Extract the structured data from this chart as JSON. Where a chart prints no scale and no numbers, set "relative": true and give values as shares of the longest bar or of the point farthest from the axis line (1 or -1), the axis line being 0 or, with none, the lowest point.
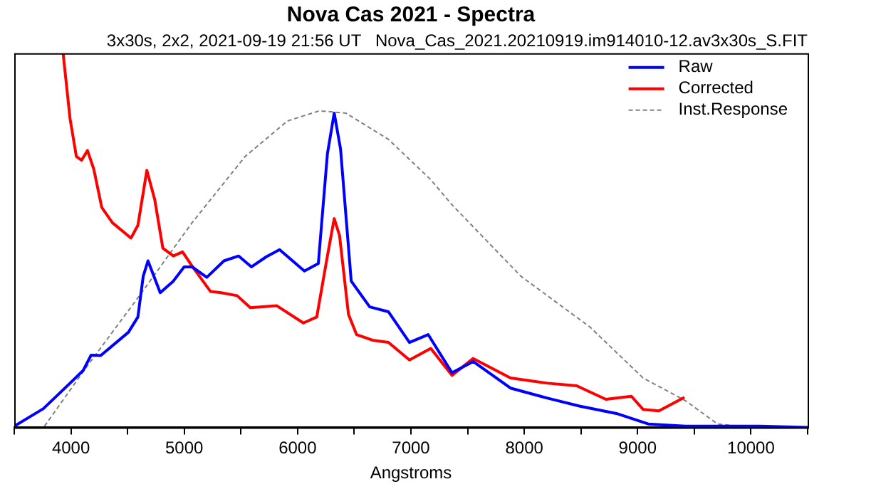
{
  "chart_data": {
    "type": "line",
    "title": "Nova Cas 2021 - Spectra",
    "subtitle": "3x30s, 2x2, 2021-09-19 21:56 UT   Nova_Cas_2021.20210919.im914010-12.av3x30s_S.FIT",
    "xlabel": "Angstroms",
    "relative": true,
    "grid": false,
    "legend": "top right",
    "marker": "none",
    "xlim": [
      3500,
      10500
    ],
    "xticks": [
      {
        "value": 3500,
        "label": null
      },
      4000,
      {
        "value": 4500,
        "label": null
      },
      5000,
      {
        "value": 5500,
        "label": null
      },
      6000,
      {
        "value": 6500,
        "label": null
      },
      7000,
      {
        "value": 7500,
        "label": null
      },
      8000,
      {
        "value": 8500,
        "label": null
      },
      9000,
      {
        "value": 9500,
        "label": null
      },
      10000,
      {
        "value": 10500,
        "label": null
      }
    ],
    "series": [
      {
        "name": "Raw",
        "color": "#0000ff",
        "line_style": "solid",
        "x": [
          3500,
          3757,
          3992,
          4108,
          4178,
          4263,
          4507,
          4591,
          4638,
          4680,
          4788,
          4904,
          4999,
          5069,
          5199,
          5350,
          5480,
          5593,
          5724,
          5841,
          6060,
          6183,
          6263,
          6323,
          6379,
          6473,
          6636,
          6801,
          6987,
          7152,
          7362,
          7549,
          7878,
          8205,
          8486,
          8813,
          9094,
          9423,
          10077,
          10500
        ],
        "values": [
          0.003,
          0.05,
          0.118,
          0.152,
          0.193,
          0.192,
          0.254,
          0.295,
          0.404,
          0.445,
          0.36,
          0.391,
          0.429,
          0.429,
          0.401,
          0.445,
          0.458,
          0.429,
          0.456,
          0.475,
          0.418,
          0.438,
          0.731,
          0.84,
          0.744,
          0.391,
          0.322,
          0.309,
          0.227,
          0.248,
          0.146,
          0.176,
          0.105,
          0.078,
          0.057,
          0.037,
          0.009,
          0.003,
          0.003,
          0
        ]
      },
      {
        "name": "Corrected",
        "color": "#ff0000",
        "line_style": "solid",
        "x": [
          3931,
          3992,
          4048,
          4094,
          4146,
          4202,
          4272,
          4366,
          4530,
          4591,
          4670,
          4740,
          4811,
          4904,
          4985,
          5069,
          5232,
          5326,
          5466,
          5583,
          5817,
          6051,
          6169,
          6263,
          6323,
          6370,
          6449,
          6520,
          6660,
          6801,
          6987,
          7175,
          7362,
          7549,
          7878,
          8205,
          8462,
          8720,
          8945,
          9048,
          9188,
          9413
        ],
        "values": [
          1,
          0.826,
          0.724,
          0.714,
          0.74,
          0.69,
          0.588,
          0.547,
          0.506,
          0.54,
          0.687,
          0.608,
          0.479,
          0.458,
          0.469,
          0.431,
          0.363,
          0.36,
          0.352,
          0.32,
          0.325,
          0.279,
          0.295,
          0.458,
          0.558,
          0.513,
          0.302,
          0.248,
          0.233,
          0.227,
          0.18,
          0.211,
          0.139,
          0.184,
          0.132,
          0.118,
          0.111,
          0.075,
          0.083,
          0.048,
          0.044,
          0.08
        ]
      },
      {
        "name": "Inst.Response",
        "color": "#808080",
        "line_style": "dashed",
        "x": [
          3767,
          4132,
          4600,
          5069,
          5537,
          5911,
          6192,
          6426,
          6801,
          7175,
          7362,
          7970,
          8580,
          9048,
          9423,
          9705,
          9986
        ],
        "values": [
          0.003,
          0.159,
          0.35,
          0.547,
          0.724,
          0.819,
          0.846,
          0.84,
          0.77,
          0.662,
          0.595,
          0.404,
          0.268,
          0.132,
          0.071,
          0.009,
          0
        ]
      }
    ]
  }
}
